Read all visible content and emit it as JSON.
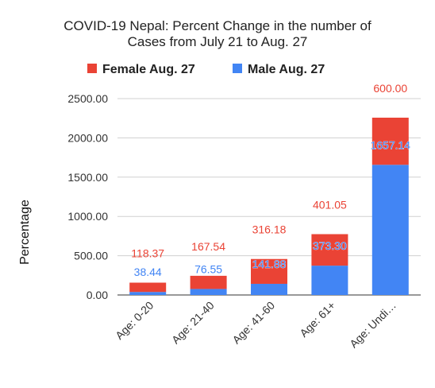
{
  "chart_data": {
    "type": "bar",
    "stacked": true,
    "title_lines": [
      "COVID-19 Nepal: Percent Change in the number of",
      "Cases from July 21 to Aug. 27"
    ],
    "ylabel": "Percentage",
    "xlabel": "",
    "categories": [
      "Age: 0-20",
      "Age: 21-40",
      "Age: 41-60",
      "Age: 61+",
      "Age: Undi…"
    ],
    "series": [
      {
        "name": "Male Aug. 27",
        "color": "#4285f4",
        "values": [
          38.44,
          76.55,
          141.88,
          373.3,
          1657.14
        ],
        "labels": [
          "38.44",
          "76.55",
          "141.88",
          "373.30",
          "1657.14"
        ]
      },
      {
        "name": "Female Aug. 27",
        "color": "#ea4335",
        "values": [
          118.37,
          167.54,
          316.18,
          401.05,
          600.0
        ],
        "labels": [
          "118.37",
          "167.54",
          "316.18",
          "401.05",
          "600.00"
        ]
      }
    ],
    "legend_order": [
      "Female Aug. 27",
      "Male Aug. 27"
    ],
    "yticks": [
      0,
      500,
      1000,
      1500,
      2000,
      2500
    ],
    "ytick_labels": [
      "0.00",
      "500.00",
      "1000.00",
      "1500.00",
      "2000.00",
      "2500.00"
    ],
    "ylim": [
      0,
      2500
    ],
    "grid": true,
    "legend_position": "top"
  }
}
